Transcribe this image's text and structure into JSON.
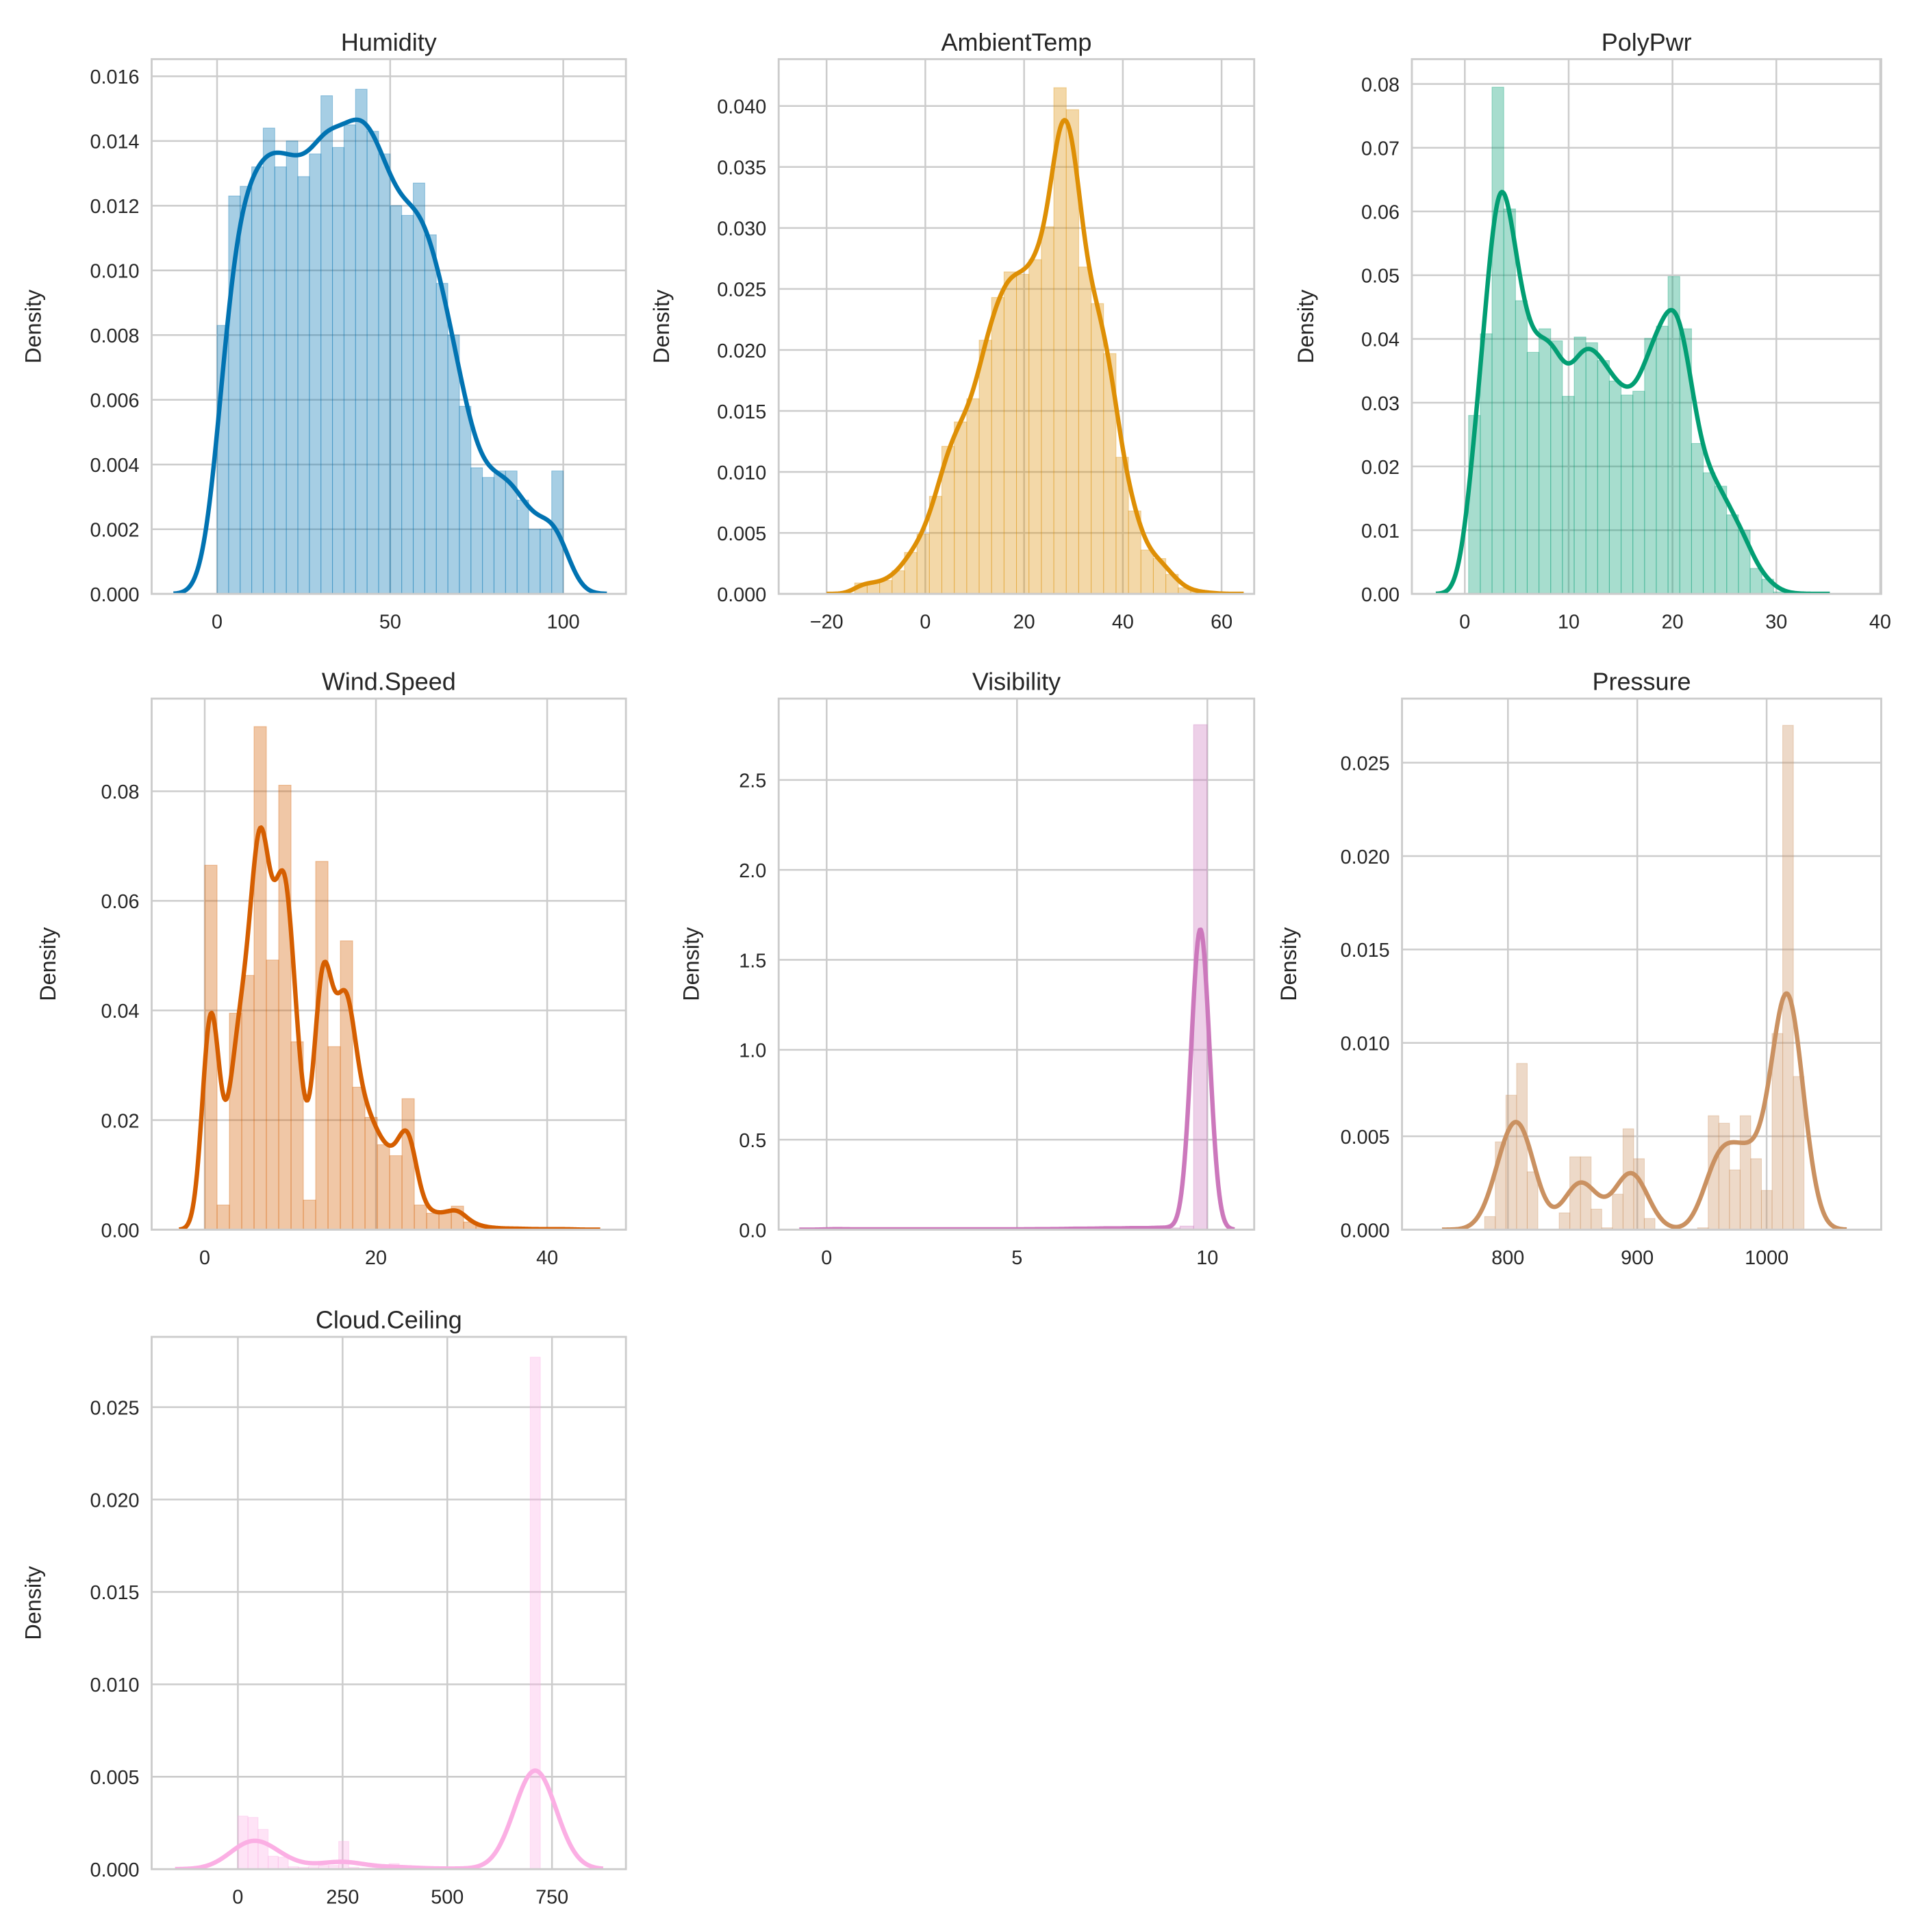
{
  "chart_data": [
    {
      "type": "histogram+kde",
      "title": "Humidity",
      "ylabel": "Density",
      "color": "#0173b2",
      "xlim": [
        -18.9,
        118.1
      ],
      "ylim": [
        0,
        0.01653
      ],
      "xticks": [
        {
          "v": 0,
          "label": "0"
        },
        {
          "v": 50,
          "label": "50"
        },
        {
          "v": 100,
          "label": "100"
        }
      ],
      "yticks": [
        {
          "v": 0,
          "label": "0.000"
        },
        {
          "v": 0.002,
          "label": "0.002"
        },
        {
          "v": 0.004,
          "label": "0.004"
        },
        {
          "v": 0.006,
          "label": "0.006"
        },
        {
          "v": 0.008,
          "label": "0.008"
        },
        {
          "v": 0.01,
          "label": "0.010"
        },
        {
          "v": 0.012,
          "label": "0.012"
        },
        {
          "v": 0.014,
          "label": "0.014"
        },
        {
          "v": 0.016,
          "label": "0.016"
        }
      ],
      "bins": {
        "start": 0,
        "width": 3.333,
        "values": [
          0.0083,
          0.0123,
          0.0126,
          0.0132,
          0.0144,
          0.0132,
          0.014,
          0.0129,
          0.0136,
          0.0154,
          0.0138,
          0.0145,
          0.0156,
          0.0143,
          0.0136,
          0.012,
          0.0117,
          0.0127,
          0.0111,
          0.0096,
          0.008,
          0.0058,
          0.0039,
          0.0036,
          0.0038,
          0.0038,
          0.0029,
          0.002,
          0.002,
          0.0038
        ]
      },
      "kde_bandwidth": 4.2
    },
    {
      "type": "histogram+kde",
      "title": "AmbientTemp",
      "ylabel": "Density",
      "color": "#de8f05",
      "xlim": [
        -29.7,
        66.6
      ],
      "ylim": [
        0,
        0.04384
      ],
      "xticks": [
        {
          "v": -20,
          "label": "−20"
        },
        {
          "v": 0,
          "label": "0"
        },
        {
          "v": 20,
          "label": "20"
        },
        {
          "v": 40,
          "label": "40"
        },
        {
          "v": 60,
          "label": "60"
        }
      ],
      "yticks": [
        {
          "v": 0,
          "label": "0.000"
        },
        {
          "v": 0.005,
          "label": "0.005"
        },
        {
          "v": 0.01,
          "label": "0.010"
        },
        {
          "v": 0.015,
          "label": "0.015"
        },
        {
          "v": 0.02,
          "label": "0.020"
        },
        {
          "v": 0.025,
          "label": "0.025"
        },
        {
          "v": 0.03,
          "label": "0.030"
        },
        {
          "v": 0.035,
          "label": "0.035"
        },
        {
          "v": 0.04,
          "label": "0.040"
        }
      ],
      "bins": {
        "start": -14.3,
        "width": 2.52,
        "values": [
          0.0009,
          0.0009,
          0.0011,
          0.0019,
          0.0034,
          0.0049,
          0.008,
          0.0121,
          0.0141,
          0.016,
          0.0208,
          0.0243,
          0.0264,
          0.0262,
          0.0274,
          0.0301,
          0.0415,
          0.0397,
          0.0268,
          0.0238,
          0.0197,
          0.0112,
          0.0068,
          0.0036,
          0.0029,
          0.0016,
          0.0005,
          0.0002,
          0.0001
        ]
      },
      "kde_bandwidth": 1.9
    },
    {
      "type": "histogram+kde",
      "title": "PolyPwr",
      "ylabel": "Density",
      "color": "#029e73",
      "xlim": [
        -5.1,
        40.1
      ],
      "ylim": [
        0,
        0.0839
      ],
      "xticks": [
        {
          "v": 0,
          "label": "0"
        },
        {
          "v": 10,
          "label": "10"
        },
        {
          "v": 20,
          "label": "20"
        },
        {
          "v": 30,
          "label": "30"
        },
        {
          "v": 40,
          "label": "40"
        }
      ],
      "yticks": [
        {
          "v": 0,
          "label": "0.00"
        },
        {
          "v": 0.01,
          "label": "0.01"
        },
        {
          "v": 0.02,
          "label": "0.02"
        },
        {
          "v": 0.03,
          "label": "0.03"
        },
        {
          "v": 0.04,
          "label": "0.04"
        },
        {
          "v": 0.05,
          "label": "0.05"
        },
        {
          "v": 0.06,
          "label": "0.06"
        },
        {
          "v": 0.07,
          "label": "0.07"
        },
        {
          "v": 0.08,
          "label": "0.08"
        }
      ],
      "bins": {
        "start": 0.36,
        "width": 1.13,
        "values": [
          0.028,
          0.0408,
          0.0795,
          0.0604,
          0.046,
          0.0379,
          0.0416,
          0.0397,
          0.031,
          0.0403,
          0.0394,
          0.0366,
          0.0334,
          0.0312,
          0.0318,
          0.0401,
          0.042,
          0.0498,
          0.0416,
          0.0236,
          0.019,
          0.0169,
          0.0124,
          0.01,
          0.004,
          0.0023,
          0.0003,
          0.0001
        ]
      },
      "kde_bandwidth": 1.05
    },
    {
      "type": "histogram+kde",
      "title": "Wind.Speed",
      "ylabel": "Density",
      "color": "#d55e00",
      "xlim": [
        -6.2,
        49.2
      ],
      "ylim": [
        0,
        0.0969
      ],
      "xticks": [
        {
          "v": 0,
          "label": "0"
        },
        {
          "v": 20,
          "label": "20"
        },
        {
          "v": 40,
          "label": "40"
        }
      ],
      "yticks": [
        {
          "v": 0,
          "label": "0.00"
        },
        {
          "v": 0.02,
          "label": "0.02"
        },
        {
          "v": 0.04,
          "label": "0.04"
        },
        {
          "v": 0.06,
          "label": "0.06"
        },
        {
          "v": 0.08,
          "label": "0.08"
        }
      ],
      "bins": {
        "start": 0,
        "width": 1.44,
        "values": [
          0.0665,
          0.0045,
          0.0395,
          0.0464,
          0.0918,
          0.0492,
          0.0811,
          0.0343,
          0.0054,
          0.0672,
          0.0334,
          0.0527,
          0.026,
          0.0205,
          0.0155,
          0.0135,
          0.0239,
          0.0045,
          0.003,
          0.003,
          0.0043,
          0.0014,
          0.0006,
          0.0003,
          0.0002,
          0.0002,
          0.0001,
          0.0001,
          0.0001,
          0.0001
        ]
      },
      "kde_bandwidth": 1.0
    },
    {
      "type": "histogram+kde",
      "title": "Visibility",
      "ylabel": "Density",
      "color": "#cc78bc",
      "xlim": [
        -1.26,
        11.23
      ],
      "ylim": [
        0,
        2.952
      ],
      "xticks": [
        {
          "v": 0,
          "label": "0"
        },
        {
          "v": 5,
          "label": "5"
        },
        {
          "v": 10,
          "label": "10"
        }
      ],
      "yticks": [
        {
          "v": 0,
          "label": "0.0"
        },
        {
          "v": 0.5,
          "label": "0.5"
        },
        {
          "v": 1,
          "label": "1.0"
        },
        {
          "v": 1.5,
          "label": "1.5"
        },
        {
          "v": 2,
          "label": "2.0"
        },
        {
          "v": 2.5,
          "label": "2.5"
        }
      ],
      "bins": {
        "start": 0,
        "width": 0.357,
        "values": [
          0.004,
          0.002,
          0.002,
          0.002,
          0.002,
          0.002,
          0.002,
          0.002,
          0.002,
          0.002,
          0.002,
          0.002,
          0.002,
          0.002,
          0.002,
          0.003,
          0.003,
          0.004,
          0.006,
          0.005,
          0.008,
          0.006,
          0.01,
          0.007,
          0.012,
          0.01,
          0.02,
          2.807
        ]
      },
      "kde_bandwidth": 0.24
    },
    {
      "type": "histogram+kde",
      "title": "Pressure",
      "ylabel": "Density",
      "color": "#ca9161",
      "xlim": [
        718.1,
        1088.6
      ],
      "ylim": [
        0,
        0.02843
      ],
      "xticks": [
        {
          "v": 800,
          "label": "800"
        },
        {
          "v": 900,
          "label": "900"
        },
        {
          "v": 1000,
          "label": "1000"
        }
      ],
      "yticks": [
        {
          "v": 0,
          "label": "0.000"
        },
        {
          "v": 0.005,
          "label": "0.005"
        },
        {
          "v": 0.01,
          "label": "0.010"
        },
        {
          "v": 0.015,
          "label": "0.015"
        },
        {
          "v": 0.02,
          "label": "0.020"
        },
        {
          "v": 0.025,
          "label": "0.025"
        }
      ],
      "bins": {
        "start": 782.0,
        "width": 8.23,
        "values": [
          0.0007,
          0.0047,
          0.0072,
          0.0089,
          0.0031,
          0,
          0,
          0.0009,
          0.0039,
          0.0039,
          0.0011,
          0.0001,
          0.0019,
          0.0054,
          0.0038,
          0.0006,
          0,
          0,
          0,
          0,
          0.0001,
          0.0061,
          0.0057,
          0.0032,
          0.0061,
          0.0038,
          0.0021,
          0.0105,
          0.027,
          0.0082
        ]
      },
      "kde_bandwidth": 11
    },
    {
      "type": "histogram+kde",
      "title": "Cloud.Ceiling",
      "ylabel": "Density",
      "color": "#fbafe4",
      "xlim": [
        -205.9,
        926.5
      ],
      "ylim": [
        0,
        0.0288
      ],
      "xticks": [
        {
          "v": 0,
          "label": "0"
        },
        {
          "v": 250,
          "label": "250"
        },
        {
          "v": 500,
          "label": "500"
        },
        {
          "v": 750,
          "label": "750"
        }
      ],
      "yticks": [
        {
          "v": 0,
          "label": "0.000"
        },
        {
          "v": 0.005,
          "label": "0.005"
        },
        {
          "v": 0.01,
          "label": "0.010"
        },
        {
          "v": 0.015,
          "label": "0.015"
        },
        {
          "v": 0.02,
          "label": "0.020"
        },
        {
          "v": 0.025,
          "label": "0.025"
        }
      ],
      "bins": {
        "start": 0,
        "width": 24.07,
        "values": [
          0.00287,
          0.0028,
          0.00215,
          0.0007,
          0.00065,
          0.00013,
          0.0001,
          0.00013,
          0.0002,
          0.0002,
          0.0015,
          0.0001,
          5e-05,
          5e-05,
          0.0001,
          0.0003,
          0.0001,
          3e-05,
          3e-05,
          3e-05,
          3e-05,
          3e-05,
          3e-05,
          3e-05,
          3e-05,
          3e-05,
          3e-05,
          3e-05,
          3e-05,
          0.0277
        ]
      },
      "kde_bandwidth": 50
    }
  ]
}
